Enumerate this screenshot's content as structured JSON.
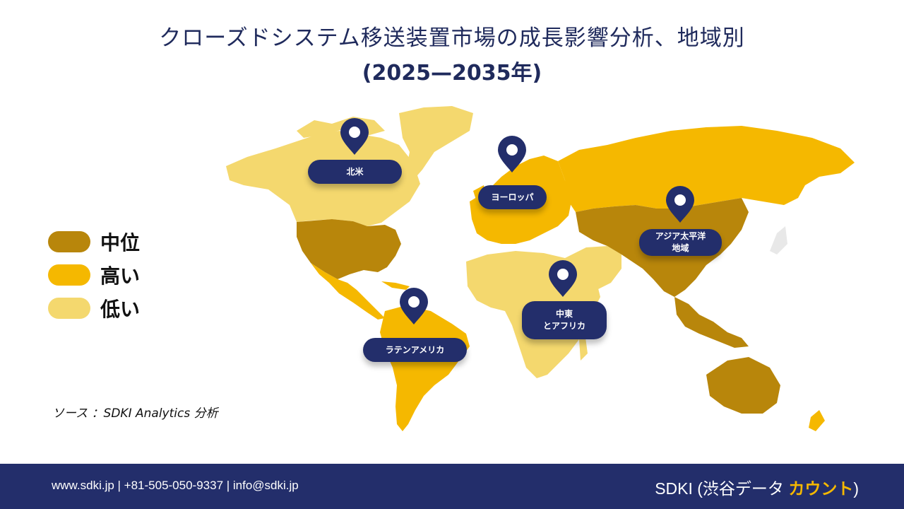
{
  "title": "クローズドシステム移送装置市場の成長影響分析、地域別",
  "subtitle": "(2025—2035年)",
  "legend": [
    {
      "label": "中位",
      "color": "#b8860b"
    },
    {
      "label": "高い",
      "color": "#f5b800"
    },
    {
      "label": "低い",
      "color": "#f4d86e"
    }
  ],
  "regions": [
    {
      "label": "北米",
      "level": "中位"
    },
    {
      "label": "ヨーロッパ",
      "level": "高い"
    },
    {
      "label": "アジア太平洋\n地域",
      "level": "中位"
    },
    {
      "label": "中東\nとアフリカ",
      "level": "低い"
    },
    {
      "label": "ラテンアメリカ",
      "level": "高い"
    }
  ],
  "source": "ソース ：SDKI Analytics 分析",
  "footer": {
    "contact": "www.sdki.jp  | +81-505-050-9337 | info@sdki.jp",
    "brand_prefix": "SDKI (渋谷データ ",
    "brand_accent": "カウント",
    "brand_suffix": ")"
  },
  "colors": {
    "medium": "#b8860b",
    "high": "#f5b800",
    "low": "#f4d86e",
    "pin": "#232e6b",
    "footer": "#232e6b"
  }
}
